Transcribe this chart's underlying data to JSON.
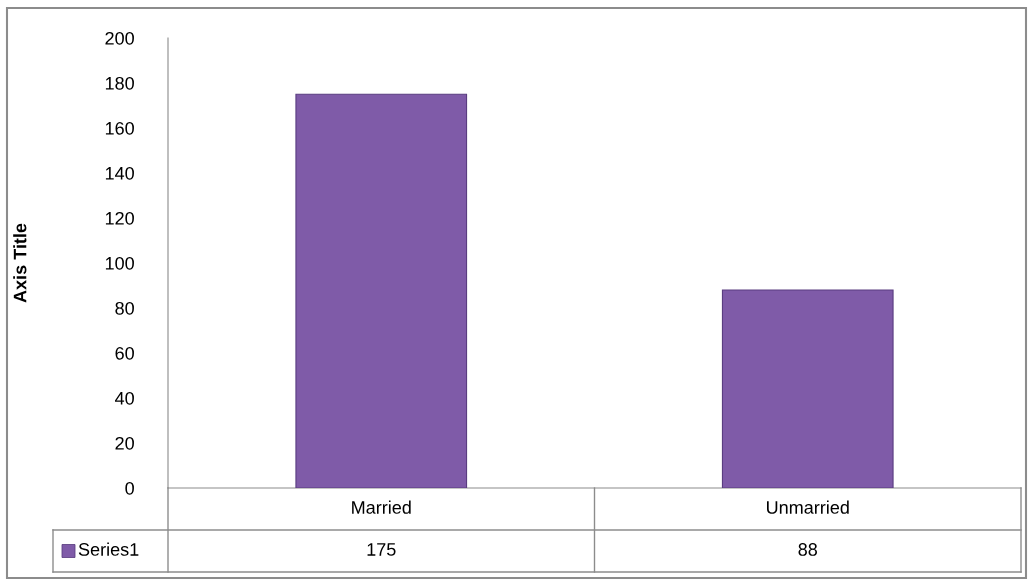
{
  "chart_data": {
    "type": "bar",
    "categories": [
      "Married",
      "Unmarried"
    ],
    "series": [
      {
        "name": "Series1",
        "color": "#7f5ba8",
        "values": [
          175,
          88
        ]
      }
    ],
    "ylabel": "Axis Title",
    "ylim": [
      0,
      200
    ],
    "yticks": [
      0,
      20,
      40,
      60,
      80,
      100,
      120,
      140,
      160,
      180,
      200
    ],
    "data_labels": true,
    "legend": "bottom left"
  }
}
